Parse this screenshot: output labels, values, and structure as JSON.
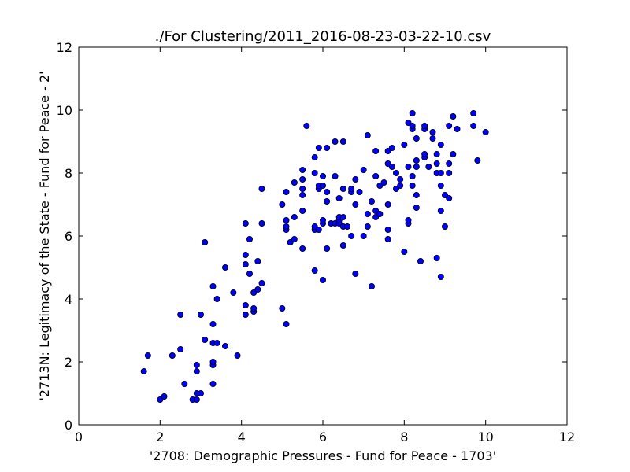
{
  "chart_data": {
    "type": "scatter",
    "title": "./For Clustering/2011_2016-08-23-03-22-10.csv",
    "xlabel": "'2708: Demographic Pressures - Fund for Peace - 1703'",
    "ylabel": "'2713N: Legitimacy of the State - Fund for Peace - 2'",
    "xlim": [
      0,
      12
    ],
    "ylim": [
      0,
      12
    ],
    "xticks": [
      "0",
      "2",
      "4",
      "6",
      "8",
      "10",
      "12"
    ],
    "yticks": [
      "0",
      "2",
      "4",
      "6",
      "8",
      "10",
      "12"
    ],
    "grid": false,
    "marker_color": "#0000ff",
    "marker_edge": "#000000",
    "points": [
      [
        1.6,
        1.7
      ],
      [
        1.7,
        2.2
      ],
      [
        2.0,
        0.8
      ],
      [
        2.1,
        0.9
      ],
      [
        2.3,
        2.2
      ],
      [
        2.5,
        2.4
      ],
      [
        2.5,
        3.5
      ],
      [
        2.6,
        1.3
      ],
      [
        2.8,
        0.8
      ],
      [
        2.9,
        0.8
      ],
      [
        2.9,
        1.0
      ],
      [
        2.9,
        1.7
      ],
      [
        2.9,
        1.9
      ],
      [
        3.0,
        1.0
      ],
      [
        3.0,
        3.5
      ],
      [
        3.1,
        2.7
      ],
      [
        3.1,
        5.8
      ],
      [
        3.3,
        1.3
      ],
      [
        3.3,
        1.9
      ],
      [
        3.3,
        2.0
      ],
      [
        3.3,
        2.6
      ],
      [
        3.3,
        3.2
      ],
      [
        3.3,
        4.4
      ],
      [
        3.4,
        2.6
      ],
      [
        3.4,
        4.0
      ],
      [
        3.6,
        2.5
      ],
      [
        3.6,
        5.0
      ],
      [
        3.8,
        4.2
      ],
      [
        3.9,
        2.2
      ],
      [
        4.1,
        3.5
      ],
      [
        4.1,
        3.8
      ],
      [
        4.1,
        5.1
      ],
      [
        4.1,
        5.4
      ],
      [
        4.1,
        6.4
      ],
      [
        4.2,
        4.8
      ],
      [
        4.2,
        5.9
      ],
      [
        4.3,
        3.6
      ],
      [
        4.3,
        3.7
      ],
      [
        4.3,
        4.2
      ],
      [
        4.4,
        4.3
      ],
      [
        4.4,
        5.2
      ],
      [
        4.5,
        4.5
      ],
      [
        4.5,
        6.4
      ],
      [
        4.5,
        7.5
      ],
      [
        5.0,
        3.7
      ],
      [
        5.0,
        7.0
      ],
      [
        5.1,
        3.2
      ],
      [
        5.1,
        6.2
      ],
      [
        5.1,
        6.3
      ],
      [
        5.1,
        6.5
      ],
      [
        5.1,
        7.4
      ],
      [
        5.2,
        5.8
      ],
      [
        5.3,
        5.9
      ],
      [
        5.3,
        6.6
      ],
      [
        5.3,
        7.7
      ],
      [
        5.5,
        5.6
      ],
      [
        5.5,
        6.8
      ],
      [
        5.5,
        7.3
      ],
      [
        5.5,
        7.5
      ],
      [
        5.5,
        7.8
      ],
      [
        5.5,
        8.1
      ],
      [
        5.6,
        9.5
      ],
      [
        5.8,
        4.9
      ],
      [
        5.8,
        6.2
      ],
      [
        5.8,
        6.3
      ],
      [
        5.8,
        8.0
      ],
      [
        5.8,
        8.5
      ],
      [
        5.9,
        6.2
      ],
      [
        5.9,
        7.5
      ],
      [
        5.9,
        7.6
      ],
      [
        5.9,
        8.8
      ],
      [
        6.0,
        4.6
      ],
      [
        6.0,
        6.4
      ],
      [
        6.0,
        6.5
      ],
      [
        6.0,
        7.6
      ],
      [
        6.0,
        7.9
      ],
      [
        6.1,
        5.6
      ],
      [
        6.1,
        7.1
      ],
      [
        6.1,
        7.4
      ],
      [
        6.1,
        8.8
      ],
      [
        6.2,
        6.4
      ],
      [
        6.3,
        6.4
      ],
      [
        6.3,
        7.9
      ],
      [
        6.3,
        9.0
      ],
      [
        6.4,
        6.4
      ],
      [
        6.4,
        6.5
      ],
      [
        6.4,
        6.6
      ],
      [
        6.4,
        7.2
      ],
      [
        6.5,
        5.7
      ],
      [
        6.5,
        6.3
      ],
      [
        6.5,
        6.6
      ],
      [
        6.5,
        7.5
      ],
      [
        6.5,
        9.0
      ],
      [
        6.6,
        6.3
      ],
      [
        6.7,
        6.0
      ],
      [
        6.7,
        7.4
      ],
      [
        6.7,
        7.5
      ],
      [
        6.8,
        4.8
      ],
      [
        6.8,
        7.0
      ],
      [
        6.8,
        7.8
      ],
      [
        6.9,
        7.4
      ],
      [
        7.0,
        6.0
      ],
      [
        7.0,
        8.1
      ],
      [
        7.1,
        6.3
      ],
      [
        7.1,
        6.7
      ],
      [
        7.1,
        9.2
      ],
      [
        7.2,
        4.4
      ],
      [
        7.2,
        7.1
      ],
      [
        7.3,
        6.6
      ],
      [
        7.3,
        6.8
      ],
      [
        7.3,
        7.9
      ],
      [
        7.3,
        8.7
      ],
      [
        7.4,
        6.7
      ],
      [
        7.4,
        7.6
      ],
      [
        7.5,
        7.7
      ],
      [
        7.6,
        5.9
      ],
      [
        7.6,
        6.2
      ],
      [
        7.6,
        7.0
      ],
      [
        7.6,
        8.3
      ],
      [
        7.6,
        8.7
      ],
      [
        7.7,
        8.2
      ],
      [
        7.7,
        8.8
      ],
      [
        7.8,
        7.5
      ],
      [
        7.8,
        8.0
      ],
      [
        7.9,
        7.6
      ],
      [
        7.9,
        7.8
      ],
      [
        8.0,
        5.5
      ],
      [
        8.0,
        8.9
      ],
      [
        8.1,
        6.4
      ],
      [
        8.1,
        6.5
      ],
      [
        8.1,
        8.2
      ],
      [
        8.1,
        9.6
      ],
      [
        8.2,
        7.6
      ],
      [
        8.2,
        7.9
      ],
      [
        8.2,
        9.4
      ],
      [
        8.2,
        9.5
      ],
      [
        8.2,
        9.9
      ],
      [
        8.3,
        6.9
      ],
      [
        8.3,
        7.3
      ],
      [
        8.3,
        8.2
      ],
      [
        8.3,
        8.4
      ],
      [
        8.3,
        9.1
      ],
      [
        8.4,
        5.2
      ],
      [
        8.5,
        8.5
      ],
      [
        8.5,
        8.6
      ],
      [
        8.5,
        9.4
      ],
      [
        8.5,
        9.5
      ],
      [
        8.6,
        8.2
      ],
      [
        8.7,
        9.1
      ],
      [
        8.7,
        9.3
      ],
      [
        8.8,
        5.3
      ],
      [
        8.8,
        8.0
      ],
      [
        8.8,
        8.3
      ],
      [
        8.8,
        8.6
      ],
      [
        8.9,
        4.7
      ],
      [
        8.9,
        6.8
      ],
      [
        8.9,
        7.6
      ],
      [
        8.9,
        8.0
      ],
      [
        8.9,
        8.9
      ],
      [
        9.0,
        6.3
      ],
      [
        9.0,
        7.3
      ],
      [
        9.1,
        7.2
      ],
      [
        9.1,
        8.0
      ],
      [
        9.1,
        8.3
      ],
      [
        9.1,
        9.5
      ],
      [
        9.2,
        8.6
      ],
      [
        9.2,
        9.8
      ],
      [
        9.3,
        9.4
      ],
      [
        9.7,
        9.5
      ],
      [
        9.7,
        9.9
      ],
      [
        9.8,
        8.4
      ],
      [
        10.0,
        9.3
      ]
    ]
  }
}
